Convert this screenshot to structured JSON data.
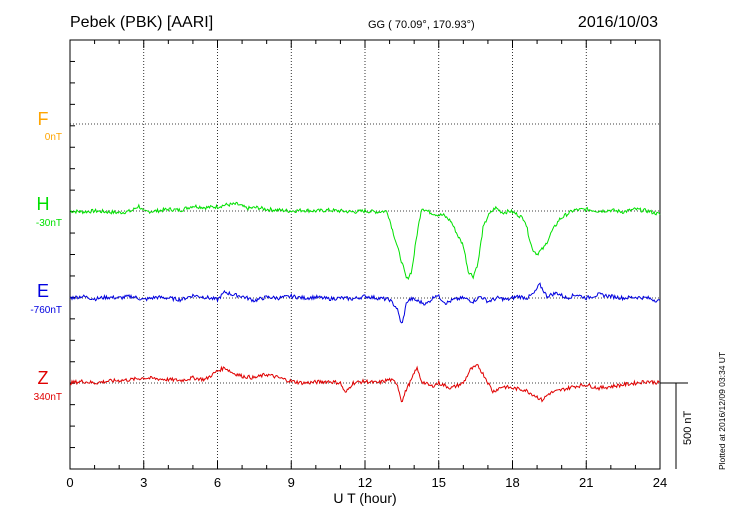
{
  "header": {
    "station": "Pebek (PBK)  [AARI]",
    "coords": "GG ( 70.09°, 170.93°)",
    "date": "2016/10/03"
  },
  "side_note": "Plotted at 2016/12/09 03:34 UT",
  "scale_label": "500 nT",
  "chart_data": {
    "type": "line",
    "xlabel": "U T (hour)",
    "xlim": [
      0,
      24
    ],
    "xticks": [
      "0",
      "3",
      "6",
      "9",
      "12",
      "15",
      "18",
      "21",
      "24"
    ],
    "scale_bar_nT": 500,
    "grid": true,
    "series": [
      {
        "name": "F",
        "baseline": "0nT",
        "color": "#ffa500",
        "x": [],
        "y": []
      },
      {
        "name": "H",
        "baseline": "-30nT",
        "color": "#00e000",
        "x": [
          0,
          0.5,
          1,
          1.5,
          2,
          2.5,
          2.8,
          3.0,
          3.5,
          4,
          4.5,
          5,
          5.5,
          6,
          6.3,
          6.8,
          7.2,
          7.6,
          8,
          8.5,
          9,
          9.5,
          10,
          10.5,
          11,
          11.5,
          12,
          12.5,
          12.9,
          13.1,
          13.3,
          13.5,
          13.7,
          13.9,
          14.1,
          14.3,
          14.6,
          14.9,
          15.2,
          15.5,
          15.8,
          16.0,
          16.2,
          16.4,
          16.6,
          16.8,
          17.0,
          17.3,
          17.6,
          17.9,
          18.2,
          18.5,
          18.8,
          19.0,
          19.3,
          19.6,
          19.9,
          20.2,
          20.5,
          21,
          21.5,
          22,
          22.5,
          23,
          23.5,
          24
        ],
        "y": [
          0,
          -5,
          0,
          -5,
          -10,
          0,
          30,
          -5,
          0,
          10,
          5,
          30,
          20,
          25,
          35,
          40,
          15,
          20,
          10,
          5,
          0,
          5,
          0,
          5,
          0,
          -5,
          0,
          -5,
          0,
          -100,
          -200,
          -300,
          -400,
          -350,
          -150,
          20,
          -5,
          -20,
          -25,
          -60,
          -150,
          -200,
          -350,
          -380,
          -300,
          -100,
          -30,
          20,
          -10,
          0,
          -20,
          -50,
          -220,
          -250,
          -210,
          -120,
          -50,
          -20,
          5,
          10,
          0,
          5,
          -5,
          10,
          0,
          -20
        ]
      },
      {
        "name": "E",
        "baseline": "-760nT",
        "color": "#0000e0",
        "x": [
          0,
          0.5,
          1,
          1.5,
          2,
          2.5,
          3,
          3.5,
          4,
          4.5,
          5,
          5.5,
          6,
          6.3,
          6.6,
          7,
          7.5,
          8,
          8.5,
          9,
          9.5,
          10,
          10.5,
          11,
          11.5,
          12,
          12.5,
          13,
          13.3,
          13.5,
          13.7,
          13.9,
          14.2,
          14.5,
          14.9,
          15.3,
          15.6,
          16,
          16.4,
          16.7,
          17.0,
          17.4,
          17.8,
          18.2,
          18.6,
          18.9,
          19.1,
          19.4,
          19.8,
          20.2,
          20.6,
          21,
          21.5,
          22,
          22.5,
          23,
          23.5,
          24
        ],
        "y": [
          0,
          10,
          -5,
          5,
          0,
          10,
          -10,
          5,
          0,
          -10,
          15,
          5,
          -10,
          35,
          20,
          10,
          -15,
          5,
          0,
          10,
          0,
          5,
          -5,
          0,
          -5,
          10,
          0,
          -10,
          -60,
          -160,
          -20,
          -5,
          -20,
          -35,
          20,
          -30,
          -10,
          0,
          -20,
          10,
          -20,
          0,
          -10,
          10,
          0,
          30,
          80,
          10,
          30,
          0,
          20,
          0,
          20,
          10,
          0,
          5,
          0,
          -20
        ]
      },
      {
        "name": "Z",
        "baseline": "340nT",
        "color": "#e00000",
        "x": [
          0,
          0.5,
          1,
          1.5,
          2,
          2.5,
          3,
          3.5,
          4,
          4.5,
          5,
          5.5,
          6,
          6.3,
          6.6,
          7,
          7.5,
          8,
          8.5,
          9,
          9.5,
          10,
          10.5,
          11,
          11.2,
          11.5,
          12,
          12.5,
          13,
          13.3,
          13.5,
          13.7,
          13.9,
          14.1,
          14.3,
          14.7,
          15,
          15.5,
          16,
          16.3,
          16.6,
          16.9,
          17.2,
          17.6,
          18,
          18.5,
          19,
          19.2,
          19.5,
          20,
          20.5,
          21,
          21.5,
          22,
          22.5,
          23,
          23.5,
          24
        ],
        "y": [
          0,
          10,
          0,
          10,
          15,
          20,
          30,
          25,
          20,
          15,
          30,
          20,
          70,
          90,
          60,
          40,
          30,
          50,
          30,
          10,
          0,
          5,
          10,
          0,
          -60,
          0,
          10,
          0,
          20,
          0,
          -110,
          -30,
          20,
          90,
          10,
          -20,
          0,
          -30,
          0,
          80,
          100,
          30,
          -50,
          -20,
          -30,
          -40,
          -80,
          -100,
          -60,
          -40,
          -20,
          -10,
          -30,
          -20,
          -10,
          0,
          10,
          0
        ]
      }
    ]
  }
}
